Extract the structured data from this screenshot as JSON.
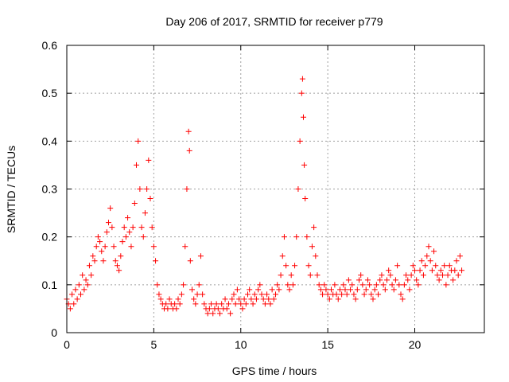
{
  "chart_data": {
    "type": "scatter",
    "title": "Day 206 of 2017, SRMTID for receiver p779",
    "xlabel": "GPS time / hours",
    "ylabel": "SRMTID / TECUs",
    "xlim": [
      0,
      24
    ],
    "ylim": [
      0,
      0.6
    ],
    "x_ticks": [
      0,
      5,
      10,
      15,
      20
    ],
    "y_ticks": [
      0,
      0.1,
      0.2,
      0.3,
      0.4,
      0.5,
      0.6
    ],
    "x_tick_labels": [
      "0",
      "5",
      "10",
      "15",
      "20"
    ],
    "y_tick_labels": [
      "0",
      "0.1",
      "0.2",
      "0.3",
      "0.4",
      "0.5",
      "0.6"
    ],
    "grid": true,
    "marker": "plus",
    "color": "#ff0000",
    "series": [
      {
        "name": "SRMTID",
        "x": [
          0.0,
          0.1,
          0.2,
          0.3,
          0.4,
          0.5,
          0.6,
          0.7,
          0.8,
          0.9,
          1.0,
          1.1,
          1.2,
          1.3,
          1.4,
          1.5,
          1.6,
          1.7,
          1.8,
          1.9,
          2.0,
          2.1,
          2.2,
          2.3,
          2.4,
          2.5,
          2.6,
          2.7,
          2.8,
          2.9,
          3.0,
          3.1,
          3.2,
          3.3,
          3.4,
          3.5,
          3.6,
          3.7,
          3.8,
          3.9,
          4.0,
          4.1,
          4.2,
          4.3,
          4.4,
          4.5,
          4.6,
          4.7,
          4.8,
          4.9,
          5.0,
          5.1,
          5.2,
          5.3,
          5.4,
          5.5,
          5.6,
          5.7,
          5.8,
          5.9,
          6.0,
          6.1,
          6.2,
          6.3,
          6.4,
          6.5,
          6.6,
          6.7,
          6.8,
          6.9,
          7.0,
          7.05,
          7.1,
          7.2,
          7.3,
          7.4,
          7.5,
          7.6,
          7.7,
          7.8,
          7.9,
          8.0,
          8.1,
          8.2,
          8.3,
          8.4,
          8.5,
          8.6,
          8.7,
          8.8,
          8.9,
          9.0,
          9.1,
          9.2,
          9.3,
          9.4,
          9.5,
          9.6,
          9.7,
          9.8,
          9.9,
          10.0,
          10.1,
          10.2,
          10.3,
          10.4,
          10.5,
          10.6,
          10.7,
          10.8,
          10.9,
          11.0,
          11.1,
          11.2,
          11.3,
          11.4,
          11.5,
          11.6,
          11.7,
          11.8,
          11.9,
          12.0,
          12.1,
          12.2,
          12.3,
          12.4,
          12.5,
          12.6,
          12.7,
          12.8,
          12.9,
          13.0,
          13.1,
          13.2,
          13.3,
          13.4,
          13.5,
          13.55,
          13.6,
          13.65,
          13.7,
          13.8,
          13.9,
          14.0,
          14.1,
          14.2,
          14.3,
          14.4,
          14.5,
          14.6,
          14.7,
          14.8,
          14.9,
          15.0,
          15.1,
          15.2,
          15.3,
          15.4,
          15.5,
          15.6,
          15.7,
          15.8,
          15.9,
          16.0,
          16.1,
          16.2,
          16.3,
          16.4,
          16.5,
          16.6,
          16.7,
          16.8,
          16.9,
          17.0,
          17.1,
          17.2,
          17.3,
          17.4,
          17.5,
          17.6,
          17.7,
          17.8,
          17.9,
          18.0,
          18.1,
          18.2,
          18.3,
          18.4,
          18.5,
          18.6,
          18.7,
          18.8,
          18.9,
          19.0,
          19.1,
          19.2,
          19.3,
          19.4,
          19.5,
          19.6,
          19.7,
          19.8,
          19.9,
          20.0,
          20.1,
          20.2,
          20.3,
          20.4,
          20.5,
          20.6,
          20.7,
          20.8,
          20.9,
          21.0,
          21.1,
          21.2,
          21.3,
          21.4,
          21.5,
          21.6,
          21.7,
          21.8,
          21.9,
          22.0,
          22.1,
          22.2,
          22.3,
          22.4,
          22.5,
          22.6,
          22.7
        ],
        "y": [
          0.07,
          0.06,
          0.05,
          0.08,
          0.06,
          0.09,
          0.07,
          0.1,
          0.08,
          0.12,
          0.09,
          0.11,
          0.1,
          0.14,
          0.12,
          0.16,
          0.15,
          0.18,
          0.2,
          0.19,
          0.17,
          0.15,
          0.18,
          0.21,
          0.23,
          0.26,
          0.22,
          0.18,
          0.15,
          0.14,
          0.13,
          0.16,
          0.19,
          0.22,
          0.2,
          0.24,
          0.21,
          0.18,
          0.22,
          0.27,
          0.35,
          0.4,
          0.3,
          0.22,
          0.2,
          0.25,
          0.3,
          0.36,
          0.28,
          0.22,
          0.18,
          0.15,
          0.1,
          0.08,
          0.07,
          0.06,
          0.05,
          0.06,
          0.05,
          0.07,
          0.06,
          0.05,
          0.06,
          0.05,
          0.07,
          0.06,
          0.08,
          0.1,
          0.18,
          0.3,
          0.42,
          0.38,
          0.15,
          0.09,
          0.07,
          0.06,
          0.08,
          0.1,
          0.16,
          0.08,
          0.06,
          0.05,
          0.04,
          0.05,
          0.06,
          0.04,
          0.05,
          0.06,
          0.05,
          0.04,
          0.06,
          0.05,
          0.07,
          0.05,
          0.06,
          0.04,
          0.07,
          0.08,
          0.06,
          0.09,
          0.07,
          0.06,
          0.05,
          0.07,
          0.06,
          0.08,
          0.09,
          0.07,
          0.06,
          0.08,
          0.07,
          0.09,
          0.1,
          0.08,
          0.07,
          0.06,
          0.08,
          0.07,
          0.06,
          0.09,
          0.07,
          0.08,
          0.1,
          0.09,
          0.12,
          0.16,
          0.2,
          0.14,
          0.1,
          0.09,
          0.12,
          0.1,
          0.14,
          0.2,
          0.3,
          0.4,
          0.5,
          0.53,
          0.45,
          0.35,
          0.28,
          0.2,
          0.14,
          0.12,
          0.18,
          0.22,
          0.16,
          0.12,
          0.1,
          0.09,
          0.08,
          0.1,
          0.09,
          0.08,
          0.07,
          0.09,
          0.08,
          0.1,
          0.08,
          0.07,
          0.09,
          0.08,
          0.1,
          0.09,
          0.08,
          0.11,
          0.09,
          0.1,
          0.08,
          0.07,
          0.09,
          0.11,
          0.12,
          0.1,
          0.08,
          0.09,
          0.11,
          0.1,
          0.08,
          0.07,
          0.09,
          0.1,
          0.08,
          0.11,
          0.12,
          0.1,
          0.09,
          0.11,
          0.13,
          0.12,
          0.1,
          0.09,
          0.11,
          0.14,
          0.1,
          0.08,
          0.07,
          0.1,
          0.12,
          0.11,
          0.09,
          0.12,
          0.14,
          0.13,
          0.11,
          0.1,
          0.13,
          0.15,
          0.12,
          0.14,
          0.16,
          0.18,
          0.15,
          0.13,
          0.17,
          0.14,
          0.12,
          0.11,
          0.13,
          0.12,
          0.14,
          0.1,
          0.12,
          0.14,
          0.13,
          0.11,
          0.13,
          0.15,
          0.12,
          0.16,
          0.13
        ]
      }
    ]
  }
}
